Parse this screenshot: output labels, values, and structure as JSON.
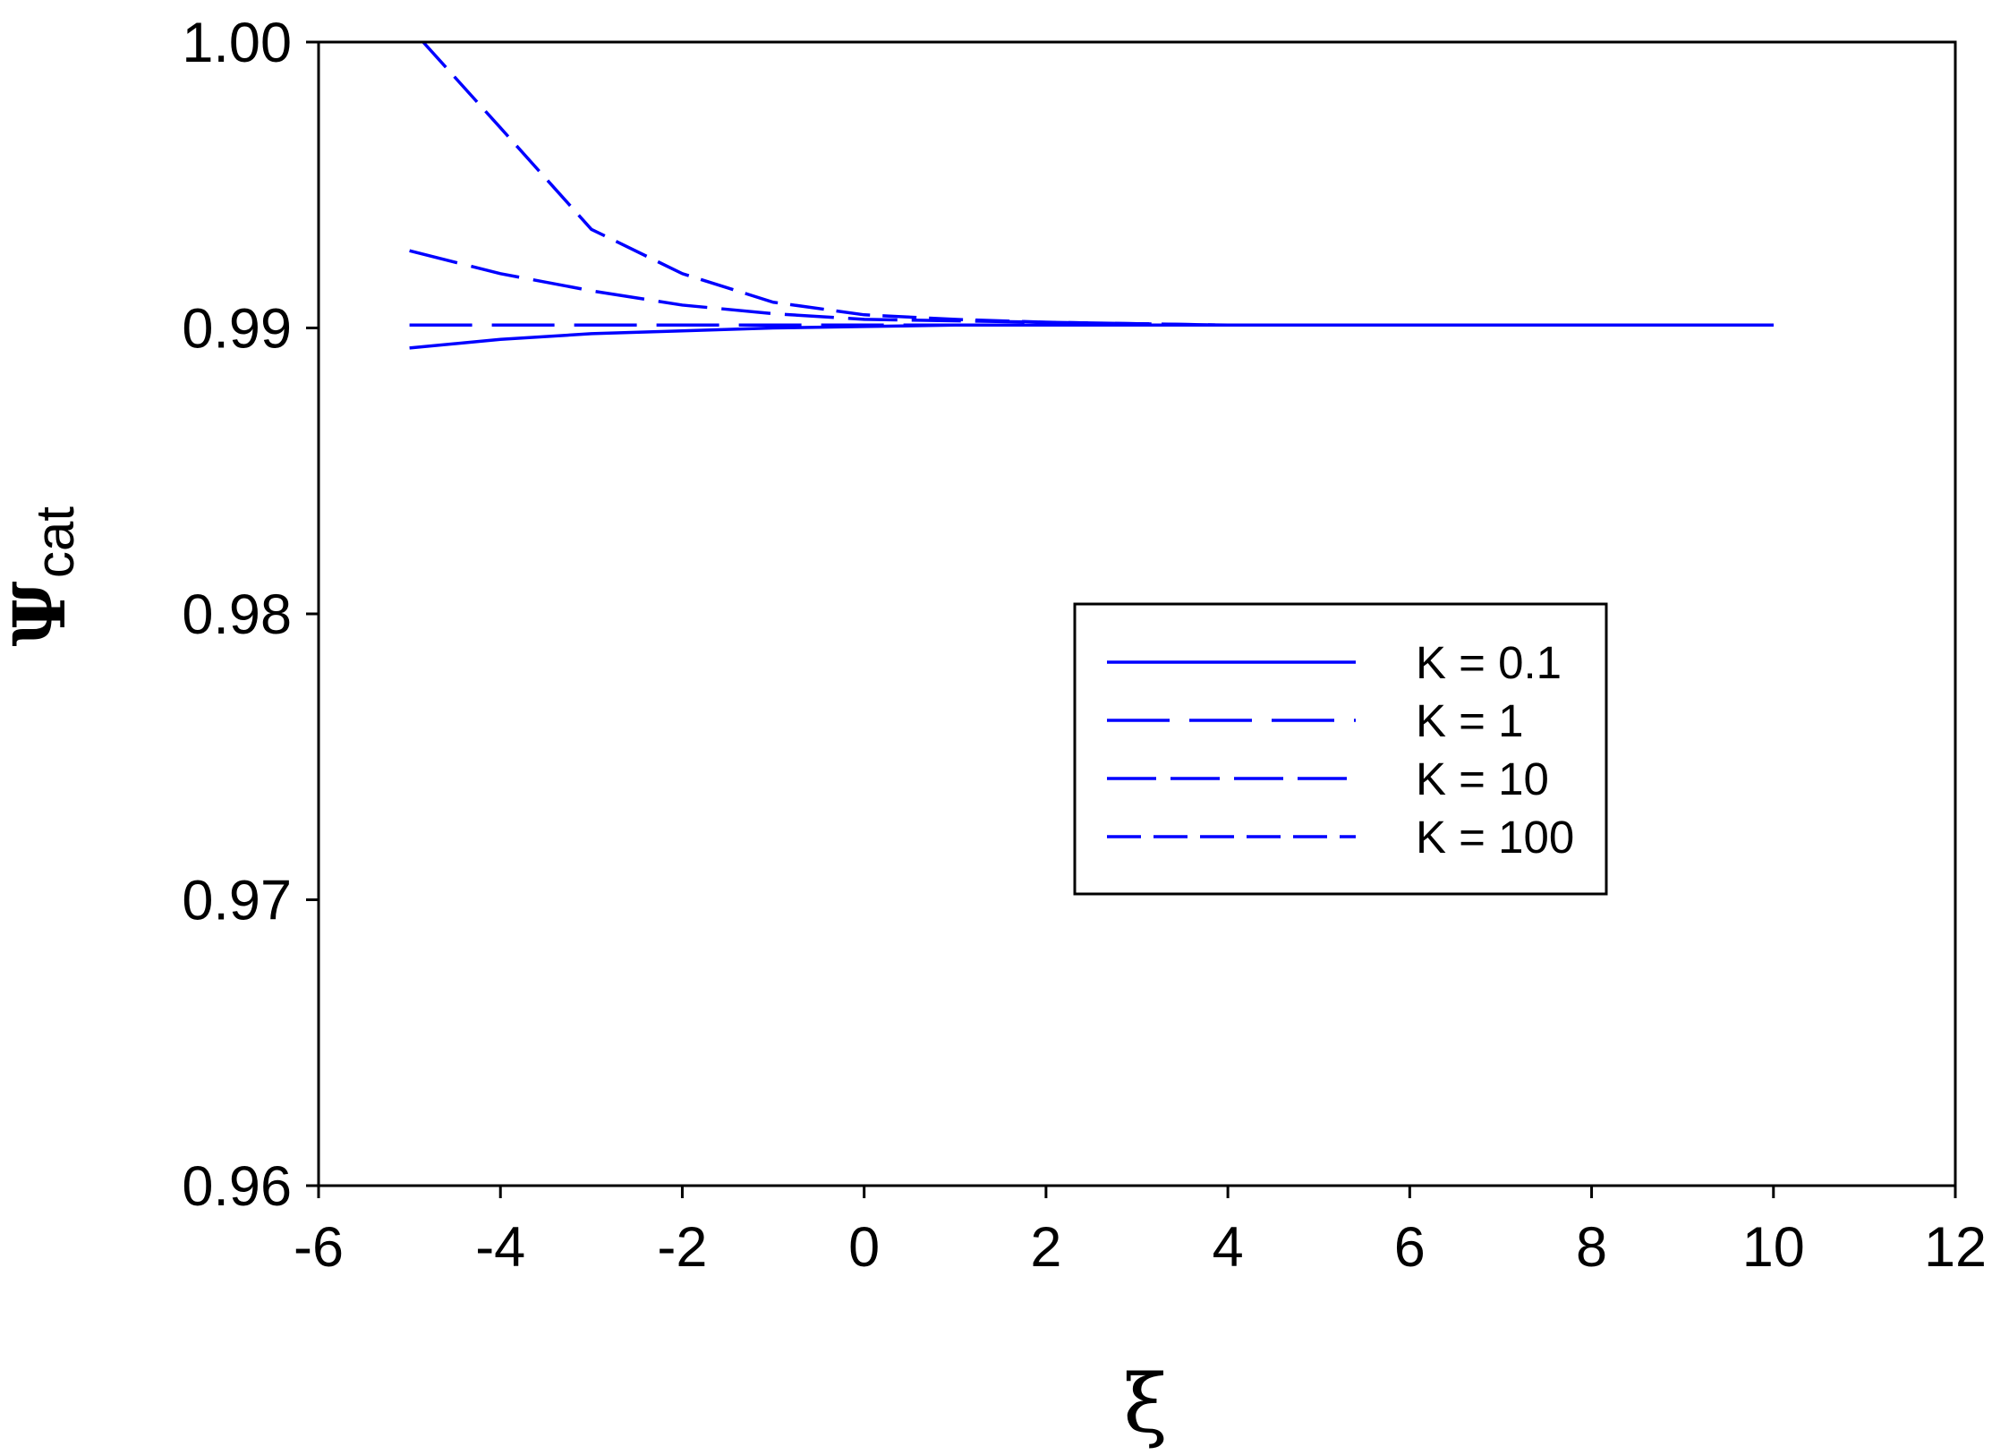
{
  "chart_data": {
    "type": "line",
    "x_label": "ξ",
    "y_label": "Ψ",
    "y_label_subscript": "cat",
    "xlim": [
      -6,
      12
    ],
    "xticks": [
      -6,
      -4,
      -2,
      0,
      2,
      4,
      6,
      8,
      10,
      12
    ],
    "ylim": [
      0.96,
      1.0
    ],
    "yticks": [
      0.96,
      0.97,
      0.98,
      0.99,
      {
        "value": 1.0,
        "label": "1.00"
      }
    ],
    "legend": "center-right",
    "series": [
      {
        "name": "K = 0.1",
        "color": "#0000ff",
        "dash": "none",
        "x": [
          -5,
          -4,
          -3,
          -2,
          -1,
          0,
          1,
          10
        ],
        "values": [
          0.9893,
          0.9896,
          0.9898,
          0.9899,
          0.99,
          0.99005,
          0.9901,
          0.9901
        ]
      },
      {
        "name": "K = 1",
        "color": "#0000ff",
        "dash": "70 22",
        "x": [
          -5,
          10
        ],
        "values": [
          0.9901,
          0.9901
        ]
      },
      {
        "name": "K = 10",
        "color": "#0000ff",
        "dash": "55 16",
        "x": [
          -5,
          -4,
          -3,
          -2,
          -1,
          0,
          2,
          4,
          10
        ],
        "values": [
          0.9927,
          0.9919,
          0.9913,
          0.9908,
          0.9905,
          0.9903,
          0.9902,
          0.9901,
          0.9901
        ]
      },
      {
        "name": "K = 100",
        "color": "#0000ff",
        "dash": "38 14",
        "x": [
          -4.85,
          -4,
          -3,
          -2,
          -1,
          0,
          1,
          2,
          4,
          10
        ],
        "values": [
          1.0,
          0.997,
          0.99345,
          0.9919,
          0.9909,
          0.99046,
          0.9903,
          0.9902,
          0.9901,
          0.9901
        ]
      }
    ]
  }
}
